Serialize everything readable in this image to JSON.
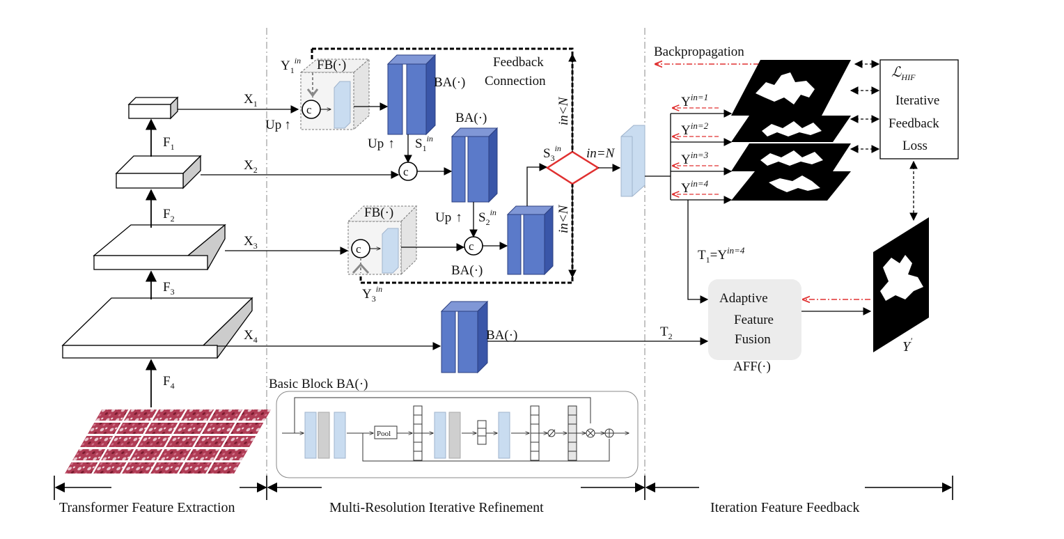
{
  "sections": {
    "left": "Transformer Feature Extraction",
    "middle": "Multi-Resolution Iterative Refinement",
    "right": "Iteration Feature Feedback"
  },
  "left": {
    "f1": "F",
    "f1_sub": "1",
    "f2": "F",
    "f2_sub": "2",
    "f3": "F",
    "f3_sub": "3",
    "f4": "F",
    "f4_sub": "4",
    "x1": "X",
    "x1_sub": "1",
    "x2": "X",
    "x2_sub": "2",
    "x3": "X",
    "x3_sub": "3",
    "x4": "X",
    "x4_sub": "4"
  },
  "middle": {
    "feedback_connection_1": "Feedback",
    "feedback_connection_2": "Connection",
    "ba": "BA(·)",
    "fb": "FB(·)",
    "up": "Up",
    "up_arrow": "↑",
    "y1": "Y",
    "y1_sub": "1",
    "y1_sup": "in",
    "y3": "Y",
    "y3_sub": "3",
    "y3_sup": "in",
    "s1": "S",
    "s1_sub": "1",
    "s1_sup": "in",
    "s2": "S",
    "s2_sub": "2",
    "s2_sup": "in",
    "s3": "S",
    "s3_sub": "3",
    "s3_sup": "in",
    "concat": "c",
    "in_eq_n": "in=N",
    "in_lt_n": "in<N",
    "basic_block": "Basic Block  BA(·)",
    "pool": "Pool",
    "t2": "T",
    "t2_sub": "2"
  },
  "right": {
    "backprop": "Backpropagation",
    "y_in_1_base": "Y",
    "y_in_1_sup": "in=1",
    "y_in_2_base": "Y",
    "y_in_2_sup": "in=2",
    "y_in_3_base": "Y",
    "y_in_3_sup": "in=3",
    "y_in_4_base": "Y",
    "y_in_4_sup": "in=4",
    "t1_base": "T",
    "t1_sub": "1",
    "t1_eq": "=Y",
    "t1_sup": "in=4",
    "loss_symbol": "ℒ",
    "loss_sub": "HIF",
    "loss_1": "Iterative",
    "loss_2": "Feedback",
    "loss_3": "Loss",
    "aff_1": "Adaptive",
    "aff_2": "Feature",
    "aff_3": "Fusion",
    "aff_label": "AFF(·)",
    "y_prime": "Y",
    "y_prime_sup": "′"
  },
  "colors": {
    "blue_front": "#5b7ac9",
    "blue_side": "#3a56a8",
    "light_blue": "#c9dcf0",
    "red": "#e03030",
    "gray_box": "#ececec"
  }
}
